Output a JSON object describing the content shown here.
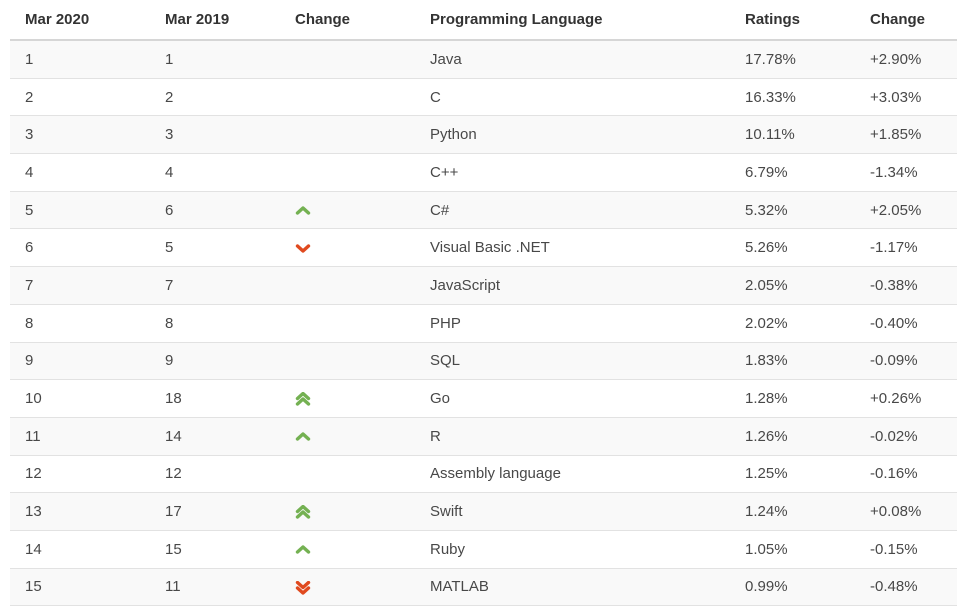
{
  "table": {
    "columns": [
      "Mar 2020",
      "Mar 2019",
      "Change",
      "Programming Language",
      "Ratings",
      "Change"
    ],
    "rows": [
      {
        "rank_2020": "1",
        "rank_2019": "1",
        "trend": "none",
        "language": "Java",
        "ratings": "17.78%",
        "change": "+2.90%"
      },
      {
        "rank_2020": "2",
        "rank_2019": "2",
        "trend": "none",
        "language": "C",
        "ratings": "16.33%",
        "change": "+3.03%"
      },
      {
        "rank_2020": "3",
        "rank_2019": "3",
        "trend": "none",
        "language": "Python",
        "ratings": "10.11%",
        "change": "+1.85%"
      },
      {
        "rank_2020": "4",
        "rank_2019": "4",
        "trend": "none",
        "language": "C++",
        "ratings": "6.79%",
        "change": "-1.34%"
      },
      {
        "rank_2020": "5",
        "rank_2019": "6",
        "trend": "up",
        "language": "C#",
        "ratings": "5.32%",
        "change": "+2.05%"
      },
      {
        "rank_2020": "6",
        "rank_2019": "5",
        "trend": "down",
        "language": "Visual Basic .NET",
        "ratings": "5.26%",
        "change": "-1.17%"
      },
      {
        "rank_2020": "7",
        "rank_2019": "7",
        "trend": "none",
        "language": "JavaScript",
        "ratings": "2.05%",
        "change": "-0.38%"
      },
      {
        "rank_2020": "8",
        "rank_2019": "8",
        "trend": "none",
        "language": "PHP",
        "ratings": "2.02%",
        "change": "-0.40%"
      },
      {
        "rank_2020": "9",
        "rank_2019": "9",
        "trend": "none",
        "language": "SQL",
        "ratings": "1.83%",
        "change": "-0.09%"
      },
      {
        "rank_2020": "10",
        "rank_2019": "18",
        "trend": "double-up",
        "language": "Go",
        "ratings": "1.28%",
        "change": "+0.26%"
      },
      {
        "rank_2020": "11",
        "rank_2019": "14",
        "trend": "up",
        "language": "R",
        "ratings": "1.26%",
        "change": "-0.02%"
      },
      {
        "rank_2020": "12",
        "rank_2019": "12",
        "trend": "none",
        "language": "Assembly language",
        "ratings": "1.25%",
        "change": "-0.16%"
      },
      {
        "rank_2020": "13",
        "rank_2019": "17",
        "trend": "double-up",
        "language": "Swift",
        "ratings": "1.24%",
        "change": "+0.08%"
      },
      {
        "rank_2020": "14",
        "rank_2019": "15",
        "trend": "up",
        "language": "Ruby",
        "ratings": "1.05%",
        "change": "-0.15%"
      },
      {
        "rank_2020": "15",
        "rank_2019": "11",
        "trend": "double-down",
        "language": "MATLAB",
        "ratings": "0.99%",
        "change": "-0.48%"
      }
    ]
  },
  "icons": {
    "up_arrow_color": "#74b152",
    "down_arrow_color": "#e04a1f"
  }
}
